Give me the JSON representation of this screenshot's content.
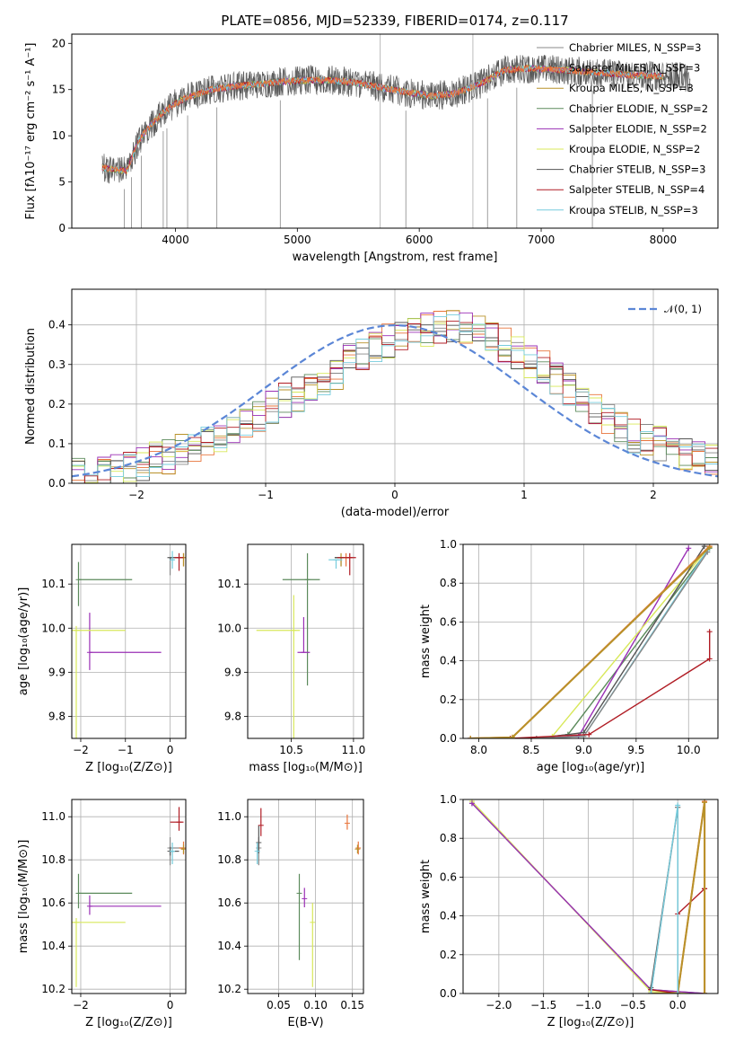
{
  "colors": {
    "series": [
      "#888888",
      "#e8743b",
      "#b8922a",
      "#5b8a5b",
      "#9a2fb5",
      "#d8e85a",
      "#555555",
      "#b01c24",
      "#76ccdd"
    ],
    "normal": "#5b86d6",
    "grid": "#b0b0b0"
  },
  "chart_data": [
    {
      "id": "spectrum",
      "type": "line",
      "title": "PLATE=0856, MJD=52339, FIBERID=0174, z=0.117",
      "xlabel": "wavelength [Angstrom, rest frame]",
      "ylabel": "Flux [fλ10⁻¹⁷ erg cm⁻² s⁻¹ A⁻¹]",
      "xlim": [
        3150,
        8450
      ],
      "ylim": [
        0,
        21
      ],
      "xticks": [
        "4000",
        "5000",
        "6000",
        "7000",
        "8000"
      ],
      "yticks": [
        "0",
        "5",
        "10",
        "15",
        "20"
      ],
      "grid": false,
      "legend_position": "right",
      "legend": [
        "Chabrier MILES, N_SSP=3",
        "Salpeter MILES, N_SSP=3",
        "Kroupa MILES, N_SSP=3",
        "Chabrier ELODIE, N_SSP=2",
        "Salpeter ELODIE, N_SSP=2",
        "Kroupa ELODIE, N_SSP=2",
        "Chabrier STELIB, N_SSP=3",
        "Salpeter STELIB, N_SSP=4",
        "Kroupa STELIB, N_SSP=3"
      ],
      "continuum_x": [
        3400,
        3600,
        3700,
        3800,
        3900,
        4000,
        4100,
        4300,
        4500,
        4700,
        4900,
        5100,
        5300,
        5500,
        5700,
        5900,
        6100,
        6300,
        6500,
        6700,
        6900,
        7100,
        7300,
        7500,
        7700,
        7900,
        8100,
        8200
      ],
      "continuum_y": [
        6.5,
        6.2,
        9.5,
        11.2,
        12.5,
        13.5,
        14.2,
        15.0,
        15.4,
        15.6,
        15.9,
        16.0,
        16.0,
        15.7,
        15.2,
        14.7,
        14.3,
        14.6,
        15.6,
        17.1,
        17.3,
        17.2,
        17.0,
        16.8,
        16.6,
        16.5,
        16.4,
        16.3
      ]
    },
    {
      "id": "residuals",
      "type": "step",
      "xlabel": "(data-model)/error",
      "ylabel": "Normed distribution",
      "xlim": [
        -2.5,
        2.5
      ],
      "ylim": [
        0,
        0.49
      ],
      "xticks": [
        "−2",
        "−1",
        "0",
        "1",
        "2"
      ],
      "yticks": [
        "0.0",
        "0.1",
        "0.2",
        "0.3",
        "0.4"
      ],
      "grid": true,
      "legend_position": "top-right",
      "legend": [
        "𝒩(0, 1)"
      ],
      "bin_centers": [
        -2.45,
        -2.35,
        -2.25,
        -2.15,
        -2.05,
        -1.95,
        -1.85,
        -1.75,
        -1.65,
        -1.55,
        -1.45,
        -1.35,
        -1.25,
        -1.15,
        -1.05,
        -0.95,
        -0.85,
        -0.75,
        -0.65,
        -0.55,
        -0.45,
        -0.35,
        -0.25,
        -0.15,
        -0.05,
        0.05,
        0.15,
        0.25,
        0.35,
        0.45,
        0.55,
        0.65,
        0.75,
        0.85,
        0.95,
        1.05,
        1.15,
        1.25,
        1.35,
        1.45,
        1.55,
        1.65,
        1.75,
        1.85,
        1.95,
        2.05,
        2.15,
        2.25,
        2.35,
        2.45
      ],
      "hist_base": [
        0.018,
        0.02,
        0.025,
        0.03,
        0.04,
        0.05,
        0.06,
        0.068,
        0.08,
        0.09,
        0.1,
        0.118,
        0.14,
        0.16,
        0.17,
        0.19,
        0.21,
        0.225,
        0.24,
        0.26,
        0.28,
        0.31,
        0.33,
        0.35,
        0.36,
        0.37,
        0.375,
        0.385,
        0.39,
        0.4,
        0.395,
        0.385,
        0.37,
        0.35,
        0.33,
        0.31,
        0.29,
        0.27,
        0.24,
        0.21,
        0.18,
        0.16,
        0.14,
        0.12,
        0.11,
        0.1,
        0.085,
        0.075,
        0.065,
        0.055
      ]
    },
    {
      "id": "age-vs-Z",
      "type": "errorbar",
      "xlabel": "Z [log₁₀(Z/Z⊙)]",
      "ylabel": "age  [log₁₀(age/yr)]",
      "xlim": [
        -2.2,
        0.35
      ],
      "ylim": [
        9.75,
        10.19
      ],
      "xticks": [
        "−2",
        "−1",
        "0"
      ],
      "yticks": [
        "9.8",
        "9.9",
        "10.0",
        "10.1"
      ],
      "grid": true,
      "points": [
        {
          "x": 0.0,
          "y": 10.16,
          "xerr": [
            0.0,
            0.3
          ],
          "yerr": [
            0.04,
            0.0
          ],
          "c": 0
        },
        {
          "x": 0.3,
          "y": 10.16,
          "xerr": [
            0.1,
            0.0
          ],
          "yerr": [
            0.02,
            0.01
          ],
          "c": 1
        },
        {
          "x": 0.3,
          "y": 10.16,
          "xerr": [
            0.05,
            0.0
          ],
          "yerr": [
            0.02,
            0.01
          ],
          "c": 2
        },
        {
          "x": -2.05,
          "y": 10.11,
          "xerr": [
            0.0,
            1.2
          ],
          "yerr": [
            0.06,
            0.04
          ],
          "c": 3
        },
        {
          "x": -1.8,
          "y": 9.945,
          "xerr": [
            0.0,
            1.6
          ],
          "yerr": [
            0.04,
            0.09
          ],
          "c": 4
        },
        {
          "x": -2.1,
          "y": 9.995,
          "xerr": [
            0.1,
            1.1
          ],
          "yerr": [
            0.27,
            0.01
          ],
          "c": 5
        },
        {
          "x": 0.0,
          "y": 10.16,
          "xerr": [
            0.0,
            0.2
          ],
          "yerr": [
            0.005,
            0.0
          ],
          "c": 6
        },
        {
          "x": 0.2,
          "y": 10.16,
          "xerr": [
            0.1,
            0.1
          ],
          "yerr": [
            0.03,
            0.01
          ],
          "c": 7
        },
        {
          "x": 0.05,
          "y": 10.155,
          "xerr": [
            0.05,
            0.05
          ],
          "yerr": [
            0.02,
            0.02
          ],
          "c": 8
        }
      ]
    },
    {
      "id": "age-vs-mass",
      "type": "errorbar",
      "xlabel": "mass [log₁₀(M/M⊙)]",
      "ylabel": "",
      "xlim": [
        10.15,
        11.08
      ],
      "ylim": [
        9.75,
        10.19
      ],
      "xticks": [
        "10.5",
        "11.0"
      ],
      "yticks": [
        "9.8",
        "9.9",
        "10.0",
        "10.1"
      ],
      "grid": true,
      "points": [
        {
          "x": 10.9,
          "y": 10.16,
          "xerr": [
            0.05,
            0.05
          ],
          "yerr": [
            0.02,
            0.0
          ],
          "c": 0
        },
        {
          "x": 10.94,
          "y": 10.16,
          "xerr": [
            0.06,
            0.05
          ],
          "yerr": [
            0.02,
            0.01
          ],
          "c": 1
        },
        {
          "x": 10.9,
          "y": 10.16,
          "xerr": [
            0.05,
            0.05
          ],
          "yerr": [
            0.02,
            0.01
          ],
          "c": 2
        },
        {
          "x": 10.63,
          "y": 10.11,
          "xerr": [
            0.2,
            0.1
          ],
          "yerr": [
            0.24,
            0.06
          ],
          "c": 3
        },
        {
          "x": 10.6,
          "y": 9.945,
          "xerr": [
            0.05,
            0.05
          ],
          "yerr": [
            0.0,
            0.08
          ],
          "c": 4
        },
        {
          "x": 10.52,
          "y": 9.995,
          "xerr": [
            0.3,
            0.05
          ],
          "yerr": [
            0.25,
            0.08
          ],
          "c": 5
        },
        {
          "x": 10.87,
          "y": 10.16,
          "xerr": [
            0.02,
            0.05
          ],
          "yerr": [
            0.0,
            0.0
          ],
          "c": 6
        },
        {
          "x": 10.97,
          "y": 10.16,
          "xerr": [
            0.1,
            0.05
          ],
          "yerr": [
            0.04,
            0.01
          ],
          "c": 7
        },
        {
          "x": 10.86,
          "y": 10.155,
          "xerr": [
            0.06,
            0.05
          ],
          "yerr": [
            0.02,
            0.0
          ],
          "c": 8
        }
      ]
    },
    {
      "id": "mass-weight-vs-age",
      "type": "line",
      "xlabel": "age  [log₁₀(age/yr)]",
      "ylabel": "mass weight",
      "xlim": [
        7.85,
        10.28
      ],
      "ylim": [
        0,
        1
      ],
      "xticks": [
        "8.0",
        "8.5",
        "9.0",
        "9.5",
        "10.0"
      ],
      "yticks": [
        "0.0",
        "0.2",
        "0.4",
        "0.6",
        "0.8",
        "1.0"
      ],
      "grid": true,
      "series": [
        {
          "c": 3,
          "x": [
            8.55,
            8.85,
            10.2
          ],
          "y": [
            0.0,
            0.02,
            0.98
          ]
        },
        {
          "c": 4,
          "x": [
            8.55,
            8.95,
            10.0
          ],
          "y": [
            0.0,
            0.01,
            0.98
          ]
        },
        {
          "c": 5,
          "x": [
            8.55,
            8.7,
            10.2
          ],
          "y": [
            0.0,
            0.01,
            0.99
          ]
        },
        {
          "c": 6,
          "x": [
            8.55,
            9.0,
            10.15
          ],
          "y": [
            0.0,
            0.03,
            0.99
          ]
        },
        {
          "c": 8,
          "x": [
            8.55,
            9.0,
            10.18
          ],
          "y": [
            0.0,
            0.01,
            0.97
          ]
        },
        {
          "c": 0,
          "x": [
            8.55,
            9.0,
            10.18
          ],
          "y": [
            0.0,
            0.01,
            0.96
          ]
        },
        {
          "c": 7,
          "x": [
            7.92,
            8.3,
            9.05,
            10.2,
            10.2
          ],
          "y": [
            0.0,
            0.0,
            0.02,
            0.41,
            0.55
          ]
        },
        {
          "c": 1,
          "x": [
            7.92,
            8.32,
            10.2
          ],
          "y": [
            0.0,
            0.005,
            0.99
          ]
        },
        {
          "c": 2,
          "x": [
            7.92,
            8.32,
            10.2
          ],
          "y": [
            0.0,
            0.005,
            0.985
          ]
        }
      ]
    },
    {
      "id": "mass-vs-Z",
      "type": "errorbar",
      "xlabel": "Z [log₁₀(Z/Z⊙)]",
      "ylabel": "mass [log₁₀(M/M⊙)]",
      "xlim": [
        -2.2,
        0.35
      ],
      "ylim": [
        10.18,
        11.08
      ],
      "xticks": [
        "−2",
        "0"
      ],
      "yticks": [
        "10.2",
        "10.4",
        "10.6",
        "10.8",
        "11.0"
      ],
      "grid": true,
      "points": [
        {
          "x": 0.0,
          "y": 10.855,
          "xerr": [
            0.0,
            0.3
          ],
          "yerr": [
            0.08,
            0.05
          ],
          "c": 0
        },
        {
          "x": 0.3,
          "y": 10.855,
          "xerr": [
            0.1,
            0.0
          ],
          "yerr": [
            0.03,
            0.03
          ],
          "c": 1
        },
        {
          "x": 0.3,
          "y": 10.85,
          "xerr": [
            0.05,
            0.0
          ],
          "yerr": [
            0.02,
            0.02
          ],
          "c": 2
        },
        {
          "x": -2.05,
          "y": 10.645,
          "xerr": [
            0.0,
            1.2
          ],
          "yerr": [
            0.07,
            0.09
          ],
          "c": 3
        },
        {
          "x": -1.8,
          "y": 10.585,
          "xerr": [
            0.0,
            1.6
          ],
          "yerr": [
            0.04,
            0.05
          ],
          "c": 4
        },
        {
          "x": -2.1,
          "y": 10.51,
          "xerr": [
            0.1,
            1.1
          ],
          "yerr": [
            0.3,
            0.02
          ],
          "c": 5
        },
        {
          "x": 0.0,
          "y": 10.84,
          "xerr": [
            0.0,
            0.2
          ],
          "yerr": [
            0.02,
            0.02
          ],
          "c": 6
        },
        {
          "x": 0.2,
          "y": 10.975,
          "xerr": [
            0.2,
            0.1
          ],
          "yerr": [
            0.04,
            0.07
          ],
          "c": 7
        },
        {
          "x": 0.05,
          "y": 10.84,
          "xerr": [
            0.05,
            0.05
          ],
          "yerr": [
            0.06,
            0.04
          ],
          "c": 8
        }
      ]
    },
    {
      "id": "mass-vs-ebv",
      "type": "errorbar",
      "xlabel": "E(B-V)",
      "ylabel": "",
      "xlim": [
        0.008,
        0.165
      ],
      "ylim": [
        10.18,
        11.08
      ],
      "xticks": [
        "0.05",
        "0.10",
        "0.15"
      ],
      "yticks": [
        "10.2",
        "10.4",
        "10.6",
        "10.8",
        "11.0"
      ],
      "grid": true,
      "points": [
        {
          "x": 0.023,
          "y": 10.855,
          "xerr": [
            0,
            0
          ],
          "yerr": [
            0.08,
            0.05
          ],
          "c": 0
        },
        {
          "x": 0.158,
          "y": 10.855,
          "xerr": [
            0,
            0
          ],
          "yerr": [
            0.03,
            0.03
          ],
          "c": 1
        },
        {
          "x": 0.157,
          "y": 10.85,
          "xerr": [
            0,
            0
          ],
          "yerr": [
            0.02,
            0.02
          ],
          "c": 2
        },
        {
          "x": 0.078,
          "y": 10.645,
          "xerr": [
            0,
            0
          ],
          "yerr": [
            0.31,
            0.09
          ],
          "c": 3
        },
        {
          "x": 0.085,
          "y": 10.62,
          "xerr": [
            0,
            0
          ],
          "yerr": [
            0.04,
            0.05
          ],
          "c": 4
        },
        {
          "x": 0.096,
          "y": 10.51,
          "xerr": [
            0,
            0
          ],
          "yerr": [
            0.3,
            0.09
          ],
          "c": 5
        },
        {
          "x": 0.023,
          "y": 10.88,
          "xerr": [
            0,
            0
          ],
          "yerr": [
            0.05,
            0.08
          ],
          "c": 6
        },
        {
          "x": 0.026,
          "y": 10.96,
          "xerr": [
            0,
            0
          ],
          "yerr": [
            0.05,
            0.08
          ],
          "c": 7
        },
        {
          "x": 0.021,
          "y": 10.84,
          "xerr": [
            0,
            0
          ],
          "yerr": [
            0.06,
            0.04
          ],
          "c": 8
        },
        {
          "x": 0.143,
          "y": 10.97,
          "xerr": [
            0,
            0
          ],
          "yerr": [
            0.03,
            0.04
          ],
          "c": 1
        }
      ]
    },
    {
      "id": "mass-weight-vs-Z",
      "type": "line",
      "xlabel": "Z [log₁₀(Z/Z⊙)]",
      "ylabel": "mass weight",
      "xlim": [
        -2.4,
        0.45
      ],
      "ylim": [
        0,
        1
      ],
      "xticks": [
        "−2.0",
        "−1.5",
        "−1.0",
        "−0.5",
        "0.0"
      ],
      "yticks": [
        "0.0",
        "0.2",
        "0.4",
        "0.6",
        "0.8",
        "1.0"
      ],
      "grid": true,
      "series": [
        {
          "c": 3,
          "x": [
            -2.3,
            -0.3,
            0.3
          ],
          "y": [
            0.98,
            0.02,
            0.0
          ]
        },
        {
          "c": 5,
          "x": [
            -2.3,
            -0.3,
            0.3
          ],
          "y": [
            0.99,
            0.01,
            0.0
          ]
        },
        {
          "c": 4,
          "x": [
            -2.3,
            -0.3,
            0.3
          ],
          "y": [
            0.98,
            0.02,
            0.0
          ]
        },
        {
          "c": 7,
          "x": [
            -0.3,
            0.0,
            0.3,
            0.3
          ],
          "y": [
            0.02,
            0.0,
            0.99,
            0.54
          ]
        },
        {
          "c": 7,
          "x": [
            0.0,
            0.3
          ],
          "y": [
            0.41,
            0.54
          ]
        },
        {
          "c": 1,
          "x": [
            -0.3,
            0.0,
            0.3,
            0.3
          ],
          "y": [
            0.0,
            0.0,
            0.99,
            0.0
          ]
        },
        {
          "c": 2,
          "x": [
            -0.3,
            0.0,
            0.3,
            0.3
          ],
          "y": [
            0.0,
            0.0,
            0.985,
            0.0
          ]
        },
        {
          "c": 6,
          "x": [
            -0.3,
            0.0,
            0.0
          ],
          "y": [
            0.03,
            0.96,
            0.0
          ]
        },
        {
          "c": 0,
          "x": [
            -0.3,
            0.0,
            0.0
          ],
          "y": [
            0.0,
            0.96,
            0.0
          ]
        },
        {
          "c": 8,
          "x": [
            -0.3,
            0.0,
            0.0
          ],
          "y": [
            0.0,
            0.97,
            0.0
          ]
        }
      ]
    }
  ]
}
